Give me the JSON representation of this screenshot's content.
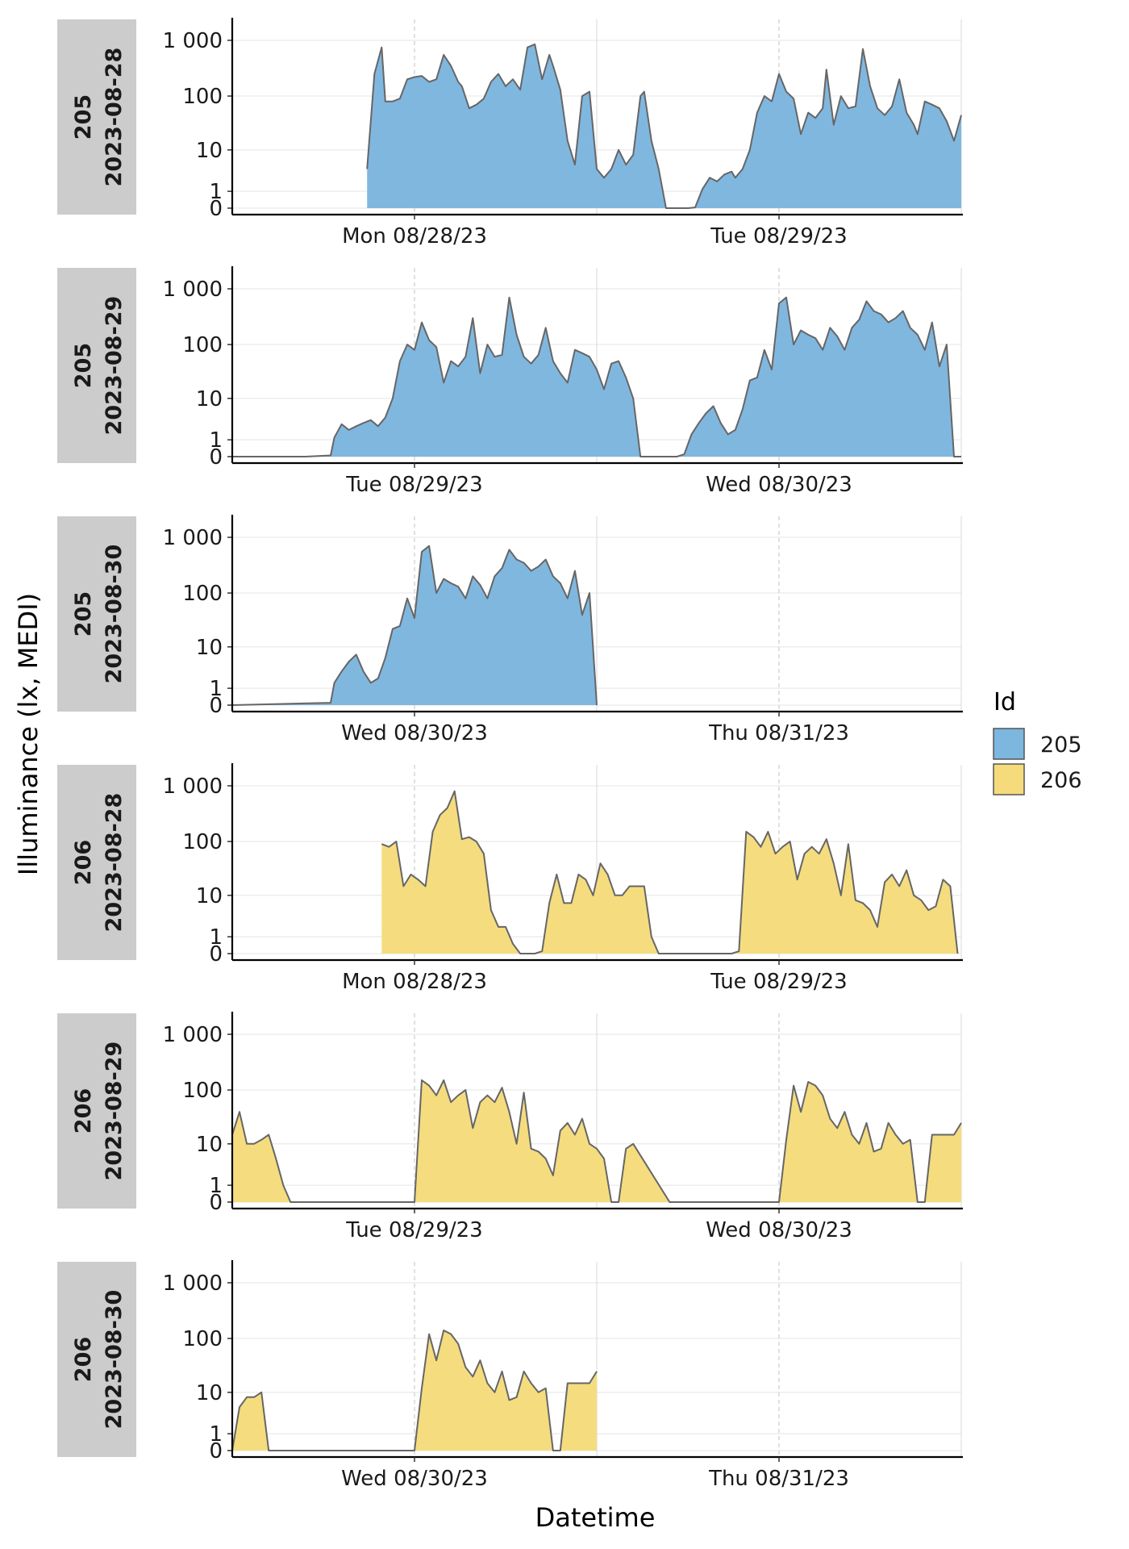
{
  "chart_data": {
    "type": "area",
    "ylabel": "Illuminance (lx, MEDI)",
    "xlabel": "Datetime",
    "y_scale": "symlog",
    "y_ticks": [
      0,
      1,
      10,
      100,
      1000
    ],
    "y_tick_labels": [
      "0",
      "1",
      "10",
      "100",
      "1 000"
    ],
    "grid": true,
    "legend": {
      "title": "Id",
      "position": "right",
      "entries": [
        {
          "name": "205",
          "color": "#7db6de"
        },
        {
          "name": "206",
          "color": "#f5db7c"
        }
      ]
    },
    "facets": [
      {
        "strip": [
          "205",
          "2023-08-28"
        ],
        "id": "205",
        "color": "#7db6de",
        "x_tick_labels": [
          "Mon 08/28/23",
          "Tue 08/29/23"
        ],
        "series": [
          {
            "x": [
              -0.13,
              -0.11,
              -0.09,
              -0.08,
              -0.06,
              -0.04,
              -0.02,
              0.0,
              0.02,
              0.04,
              0.06,
              0.08,
              0.1,
              0.12,
              0.13,
              0.15,
              0.17,
              0.19,
              0.21,
              0.23,
              0.25,
              0.27,
              0.29,
              0.31,
              0.33,
              0.35,
              0.37,
              0.38,
              0.4,
              0.42,
              0.44,
              0.46,
              0.48,
              0.5,
              0.52,
              0.54,
              0.56,
              0.58,
              0.6,
              0.62,
              0.63,
              0.65,
              0.67,
              0.69,
              0.71,
              0.73,
              0.75,
              0.77,
              0.79,
              0.81,
              0.83,
              0.85,
              0.87,
              0.88,
              0.9,
              0.92,
              0.94,
              0.96,
              0.98,
              1.0,
              1.02,
              1.04,
              1.06,
              1.08,
              1.1,
              1.12,
              1.13,
              1.15,
              1.17,
              1.19,
              1.21,
              1.23,
              1.25,
              1.27,
              1.29,
              1.31,
              1.33,
              1.35,
              1.37,
              1.38,
              1.4,
              1.42,
              1.44,
              1.46,
              1.48,
              1.5
            ],
            "y": [
              4,
              250,
              750,
              80,
              80,
              90,
              200,
              220,
              230,
              180,
              200,
              550,
              350,
              180,
              150,
              60,
              70,
              90,
              180,
              250,
              150,
              200,
              130,
              750,
              850,
              200,
              550,
              350,
              130,
              15,
              5,
              100,
              120,
              4,
              2.5,
              4,
              10,
              5,
              8,
              100,
              120,
              15,
              4,
              0,
              0,
              0,
              0,
              0.03,
              1.2,
              2.5,
              2.0,
              3.0,
              3.5,
              2.5,
              4,
              10,
              50,
              100,
              80,
              250,
              120,
              90,
              20,
              50,
              40,
              60,
              300,
              30,
              100,
              60,
              65,
              700,
              150,
              60,
              45,
              65,
              200,
              50,
              30,
              20,
              80,
              70,
              60,
              35,
              15,
              45
            ]
          }
        ]
      },
      {
        "strip": [
          "205",
          "2023-08-29"
        ],
        "id": "205",
        "color": "#7db6de",
        "x_tick_labels": [
          "Tue 08/29/23",
          "Wed 08/30/23"
        ],
        "series": [
          {
            "x": [
              -0.5,
              -0.3,
              -0.23,
              -0.22,
              -0.2,
              -0.18,
              -0.16,
              -0.14,
              -0.12,
              -0.1,
              -0.08,
              -0.06,
              -0.04,
              -0.02,
              0.0,
              0.02,
              0.04,
              0.06,
              0.08,
              0.1,
              0.12,
              0.14,
              0.16,
              0.18,
              0.2,
              0.22,
              0.24,
              0.26,
              0.28,
              0.3,
              0.32,
              0.34,
              0.36,
              0.38,
              0.4,
              0.42,
              0.44,
              0.46,
              0.48,
              0.5,
              0.52,
              0.54,
              0.56,
              0.58,
              0.6,
              0.62,
              0.64,
              0.66,
              0.68,
              0.7,
              0.72,
              0.74,
              0.76,
              0.78,
              0.8,
              0.82,
              0.84,
              0.86,
              0.88,
              0.9,
              0.92,
              0.94,
              0.96,
              0.98,
              1.0,
              1.02,
              1.04,
              1.06,
              1.08,
              1.1,
              1.12,
              1.14,
              1.16,
              1.18,
              1.2,
              1.22,
              1.24,
              1.26,
              1.28,
              1.3,
              1.32,
              1.34,
              1.36,
              1.38,
              1.4,
              1.42,
              1.44,
              1.46,
              1.48,
              1.5
            ],
            "y": [
              0,
              0,
              0.05,
              1.2,
              2.8,
              2.0,
              2.5,
              3.0,
              3.5,
              2.5,
              4,
              10,
              50,
              100,
              80,
              250,
              120,
              90,
              20,
              50,
              40,
              60,
              300,
              30,
              100,
              60,
              65,
              700,
              150,
              60,
              45,
              65,
              200,
              50,
              30,
              20,
              80,
              70,
              60,
              35,
              15,
              45,
              50,
              25,
              10,
              0,
              0,
              0,
              0,
              0,
              0,
              0.1,
              1.5,
              3,
              5,
              7,
              3,
              1.5,
              2,
              6,
              22,
              25,
              80,
              35,
              550,
              700,
              100,
              180,
              150,
              130,
              80,
              200,
              140,
              80,
              200,
              280,
              600,
              400,
              350,
              250,
              300,
              400,
              200,
              150,
              80,
              250,
              40,
              100,
              0,
              0
            ]
          }
        ]
      },
      {
        "strip": [
          "205",
          "2023-08-30"
        ],
        "id": "205",
        "color": "#7db6de",
        "x_tick_labels": [
          "Wed 08/30/23",
          "Thu 08/31/23"
        ],
        "series": [
          {
            "x": [
              -0.5,
              -0.23,
              -0.22,
              -0.2,
              -0.18,
              -0.16,
              -0.14,
              -0.12,
              -0.1,
              -0.08,
              -0.06,
              -0.04,
              -0.02,
              0.0,
              0.02,
              0.04,
              0.06,
              0.08,
              0.1,
              0.12,
              0.14,
              0.16,
              0.18,
              0.2,
              0.22,
              0.24,
              0.26,
              0.28,
              0.3,
              0.32,
              0.34,
              0.36,
              0.38,
              0.4,
              0.42,
              0.44,
              0.46,
              0.48,
              0.5
            ],
            "y": [
              0,
              0.1,
              1.5,
              3,
              5,
              7,
              3,
              1.5,
              2,
              6,
              22,
              25,
              80,
              35,
              550,
              700,
              100,
              180,
              150,
              130,
              80,
              200,
              140,
              80,
              200,
              280,
              600,
              400,
              350,
              250,
              300,
              400,
              200,
              150,
              80,
              250,
              40,
              100,
              0
            ]
          }
        ]
      },
      {
        "strip": [
          "206",
          "2023-08-28"
        ],
        "id": "206",
        "color": "#f5db7c",
        "x_tick_labels": [
          "Mon 08/28/23",
          "Tue 08/29/23"
        ],
        "series": [
          {
            "x": [
              -0.09,
              -0.07,
              -0.05,
              -0.03,
              -0.01,
              0.01,
              0.03,
              0.05,
              0.07,
              0.09,
              0.11,
              0.13,
              0.15,
              0.17,
              0.19,
              0.21,
              0.23,
              0.25,
              0.27,
              0.29,
              0.31,
              0.33,
              0.35,
              0.37,
              0.39,
              0.41,
              0.43,
              0.45,
              0.47,
              0.49,
              0.51,
              0.53,
              0.55,
              0.57,
              0.59,
              0.61,
              0.63,
              0.65,
              0.67,
              0.69,
              0.71,
              0.73,
              0.75,
              0.77,
              0.79,
              0.81,
              0.83,
              0.85,
              0.87,
              0.89,
              0.91,
              0.93,
              0.95,
              0.97,
              0.99,
              1.01,
              1.03,
              1.05,
              1.07,
              1.09,
              1.11,
              1.13,
              1.15,
              1.17,
              1.19,
              1.21,
              1.23,
              1.25,
              1.27,
              1.29,
              1.31,
              1.33,
              1.35,
              1.37,
              1.39,
              1.41,
              1.43,
              1.45,
              1.47,
              1.49
            ],
            "y": [
              90,
              80,
              100,
              15,
              25,
              20,
              15,
              150,
              300,
              400,
              800,
              110,
              120,
              100,
              60,
              5,
              2,
              2,
              0.5,
              0,
              0,
              0,
              0.1,
              7,
              25,
              7,
              7,
              25,
              20,
              10,
              40,
              25,
              10,
              10,
              15,
              15,
              15,
              1,
              0,
              0,
              0,
              0,
              0,
              0,
              0,
              0,
              0,
              0,
              0,
              0.1,
              150,
              120,
              80,
              150,
              60,
              80,
              100,
              20,
              60,
              80,
              60,
              110,
              40,
              10,
              90,
              8,
              7,
              5,
              2,
              18,
              25,
              15,
              30,
              10,
              8,
              5,
              6,
              20,
              15,
              0
            ]
          }
        ]
      },
      {
        "strip": [
          "206",
          "2023-08-29"
        ],
        "id": "206",
        "color": "#f5db7c",
        "x_tick_labels": [
          "Tue 08/29/23",
          "Wed 08/30/23"
        ],
        "series": [
          {
            "x": [
              -0.5,
              -0.48,
              -0.46,
              -0.44,
              -0.42,
              -0.4,
              -0.38,
              -0.36,
              -0.34,
              -0.32,
              -0.3,
              -0.28,
              -0.26,
              -0.24,
              -0.22,
              -0.2,
              -0.1,
              0.0,
              0.02,
              0.04,
              0.06,
              0.08,
              0.1,
              0.12,
              0.14,
              0.16,
              0.18,
              0.2,
              0.22,
              0.24,
              0.26,
              0.28,
              0.3,
              0.32,
              0.34,
              0.36,
              0.38,
              0.4,
              0.42,
              0.44,
              0.46,
              0.48,
              0.5,
              0.52,
              0.54,
              0.56,
              0.58,
              0.6,
              0.7,
              0.8,
              0.9,
              1.0,
              1.02,
              1.04,
              1.06,
              1.08,
              1.1,
              1.12,
              1.14,
              1.16,
              1.18,
              1.2,
              1.22,
              1.24,
              1.26,
              1.28,
              1.3,
              1.32,
              1.34,
              1.36,
              1.38,
              1.4,
              1.42,
              1.44,
              1.46,
              1.48,
              1.5
            ],
            "y": [
              15,
              40,
              10,
              10,
              12,
              15,
              5,
              1,
              0,
              0,
              0,
              0,
              0,
              0,
              0,
              0,
              0,
              0,
              150,
              120,
              80,
              150,
              60,
              80,
              100,
              20,
              60,
              80,
              60,
              110,
              40,
              10,
              90,
              8,
              7,
              5,
              2,
              18,
              25,
              15,
              30,
              10,
              8,
              5,
              0,
              0,
              8,
              10,
              0,
              0,
              0,
              0,
              12,
              120,
              40,
              140,
              120,
              80,
              30,
              20,
              40,
              15,
              10,
              25,
              7,
              8,
              25,
              15,
              10,
              12,
              0,
              0,
              15,
              15,
              15,
              15,
              25
            ]
          }
        ]
      },
      {
        "strip": [
          "206",
          "2023-08-30"
        ],
        "id": "206",
        "color": "#f5db7c",
        "x_tick_labels": [
          "Wed 08/30/23",
          "Thu 08/31/23"
        ],
        "series": [
          {
            "x": [
              -0.5,
              -0.48,
              -0.46,
              -0.44,
              -0.42,
              -0.4,
              -0.38,
              -0.3,
              -0.2,
              -0.1,
              0.0,
              0.02,
              0.04,
              0.06,
              0.08,
              0.1,
              0.12,
              0.14,
              0.16,
              0.18,
              0.2,
              0.22,
              0.24,
              0.26,
              0.28,
              0.3,
              0.32,
              0.34,
              0.36,
              0.38,
              0.4,
              0.42,
              0.44,
              0.46,
              0.48,
              0.5
            ],
            "y": [
              0,
              5,
              8,
              8,
              10,
              0,
              0,
              0,
              0,
              0,
              0,
              12,
              120,
              40,
              140,
              120,
              80,
              30,
              20,
              40,
              15,
              10,
              25,
              7,
              8,
              25,
              15,
              10,
              12,
              0,
              0,
              15,
              15,
              15,
              15,
              25
            ]
          }
        ]
      }
    ]
  }
}
